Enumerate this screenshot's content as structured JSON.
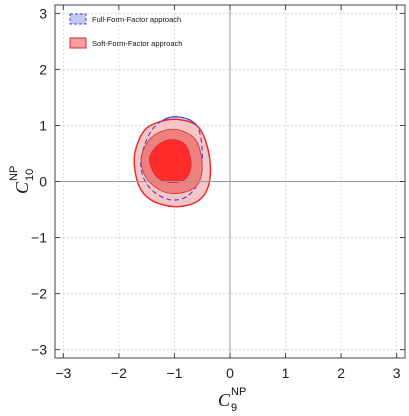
{
  "chart_data": {
    "type": "contour",
    "title": "",
    "xlabel": {
      "main": "C",
      "sub": "9",
      "sup": "NP"
    },
    "ylabel": {
      "main": "C",
      "sub": "10",
      "sup": "NP"
    },
    "xlim": [
      -3.15,
      3.15
    ],
    "ylim": [
      -3.15,
      3.15
    ],
    "xticks": [
      -3,
      -2,
      -1,
      0,
      1,
      2,
      3
    ],
    "yticks": [
      -3,
      -2,
      -1,
      0,
      1,
      2,
      3
    ],
    "grid": true,
    "legend_position": "top-left",
    "series": [
      {
        "name": "Full-Form-Factor approach",
        "color": "#4444cc",
        "fill": "#c8c8f4",
        "style": "dashed",
        "contours": [
          {
            "level": "outer",
            "points": [
              [
                -1.6,
                0.4
              ],
              [
                -1.45,
                0.85
              ],
              [
                -1.2,
                1.1
              ],
              [
                -0.9,
                1.15
              ],
              [
                -0.6,
                1.0
              ],
              [
                -0.5,
                0.55
              ],
              [
                -0.55,
                0.05
              ],
              [
                -0.75,
                -0.25
              ],
              [
                -1.05,
                -0.33
              ],
              [
                -1.35,
                -0.2
              ],
              [
                -1.55,
                0.05
              ]
            ]
          }
        ]
      },
      {
        "name": "Soft-Form-Factor approach",
        "color": "#ee2222",
        "fill": "#f4a0a0",
        "style": "solid",
        "contours": [
          {
            "level": "3sigma",
            "fill": "#f6c6c6",
            "points": [
              [
                -1.72,
                0.45
              ],
              [
                -1.55,
                0.9
              ],
              [
                -1.25,
                1.07
              ],
              [
                -0.88,
                1.1
              ],
              [
                -0.55,
                0.95
              ],
              [
                -0.37,
                0.45
              ],
              [
                -0.38,
                -0.05
              ],
              [
                -0.58,
                -0.35
              ],
              [
                -0.98,
                -0.45
              ],
              [
                -1.42,
                -0.33
              ],
              [
                -1.65,
                -0.05
              ]
            ]
          },
          {
            "level": "2sigma",
            "fill": "#ee8080",
            "points": [
              [
                -1.6,
                0.4
              ],
              [
                -1.45,
                0.75
              ],
              [
                -1.15,
                0.92
              ],
              [
                -0.85,
                0.9
              ],
              [
                -0.6,
                0.72
              ],
              [
                -0.5,
                0.3
              ],
              [
                -0.58,
                -0.05
              ],
              [
                -0.85,
                -0.2
              ],
              [
                -1.2,
                -0.18
              ],
              [
                -1.5,
                0.05
              ]
            ]
          },
          {
            "level": "1sigma",
            "fill": "#ff2a2a",
            "points": [
              [
                -1.45,
                0.4
              ],
              [
                -1.3,
                0.65
              ],
              [
                -1.05,
                0.75
              ],
              [
                -0.8,
                0.65
              ],
              [
                -0.7,
                0.3
              ],
              [
                -0.8,
                0.05
              ],
              [
                -1.05,
                -0.02
              ],
              [
                -1.32,
                0.08
              ]
            ]
          }
        ]
      }
    ]
  }
}
